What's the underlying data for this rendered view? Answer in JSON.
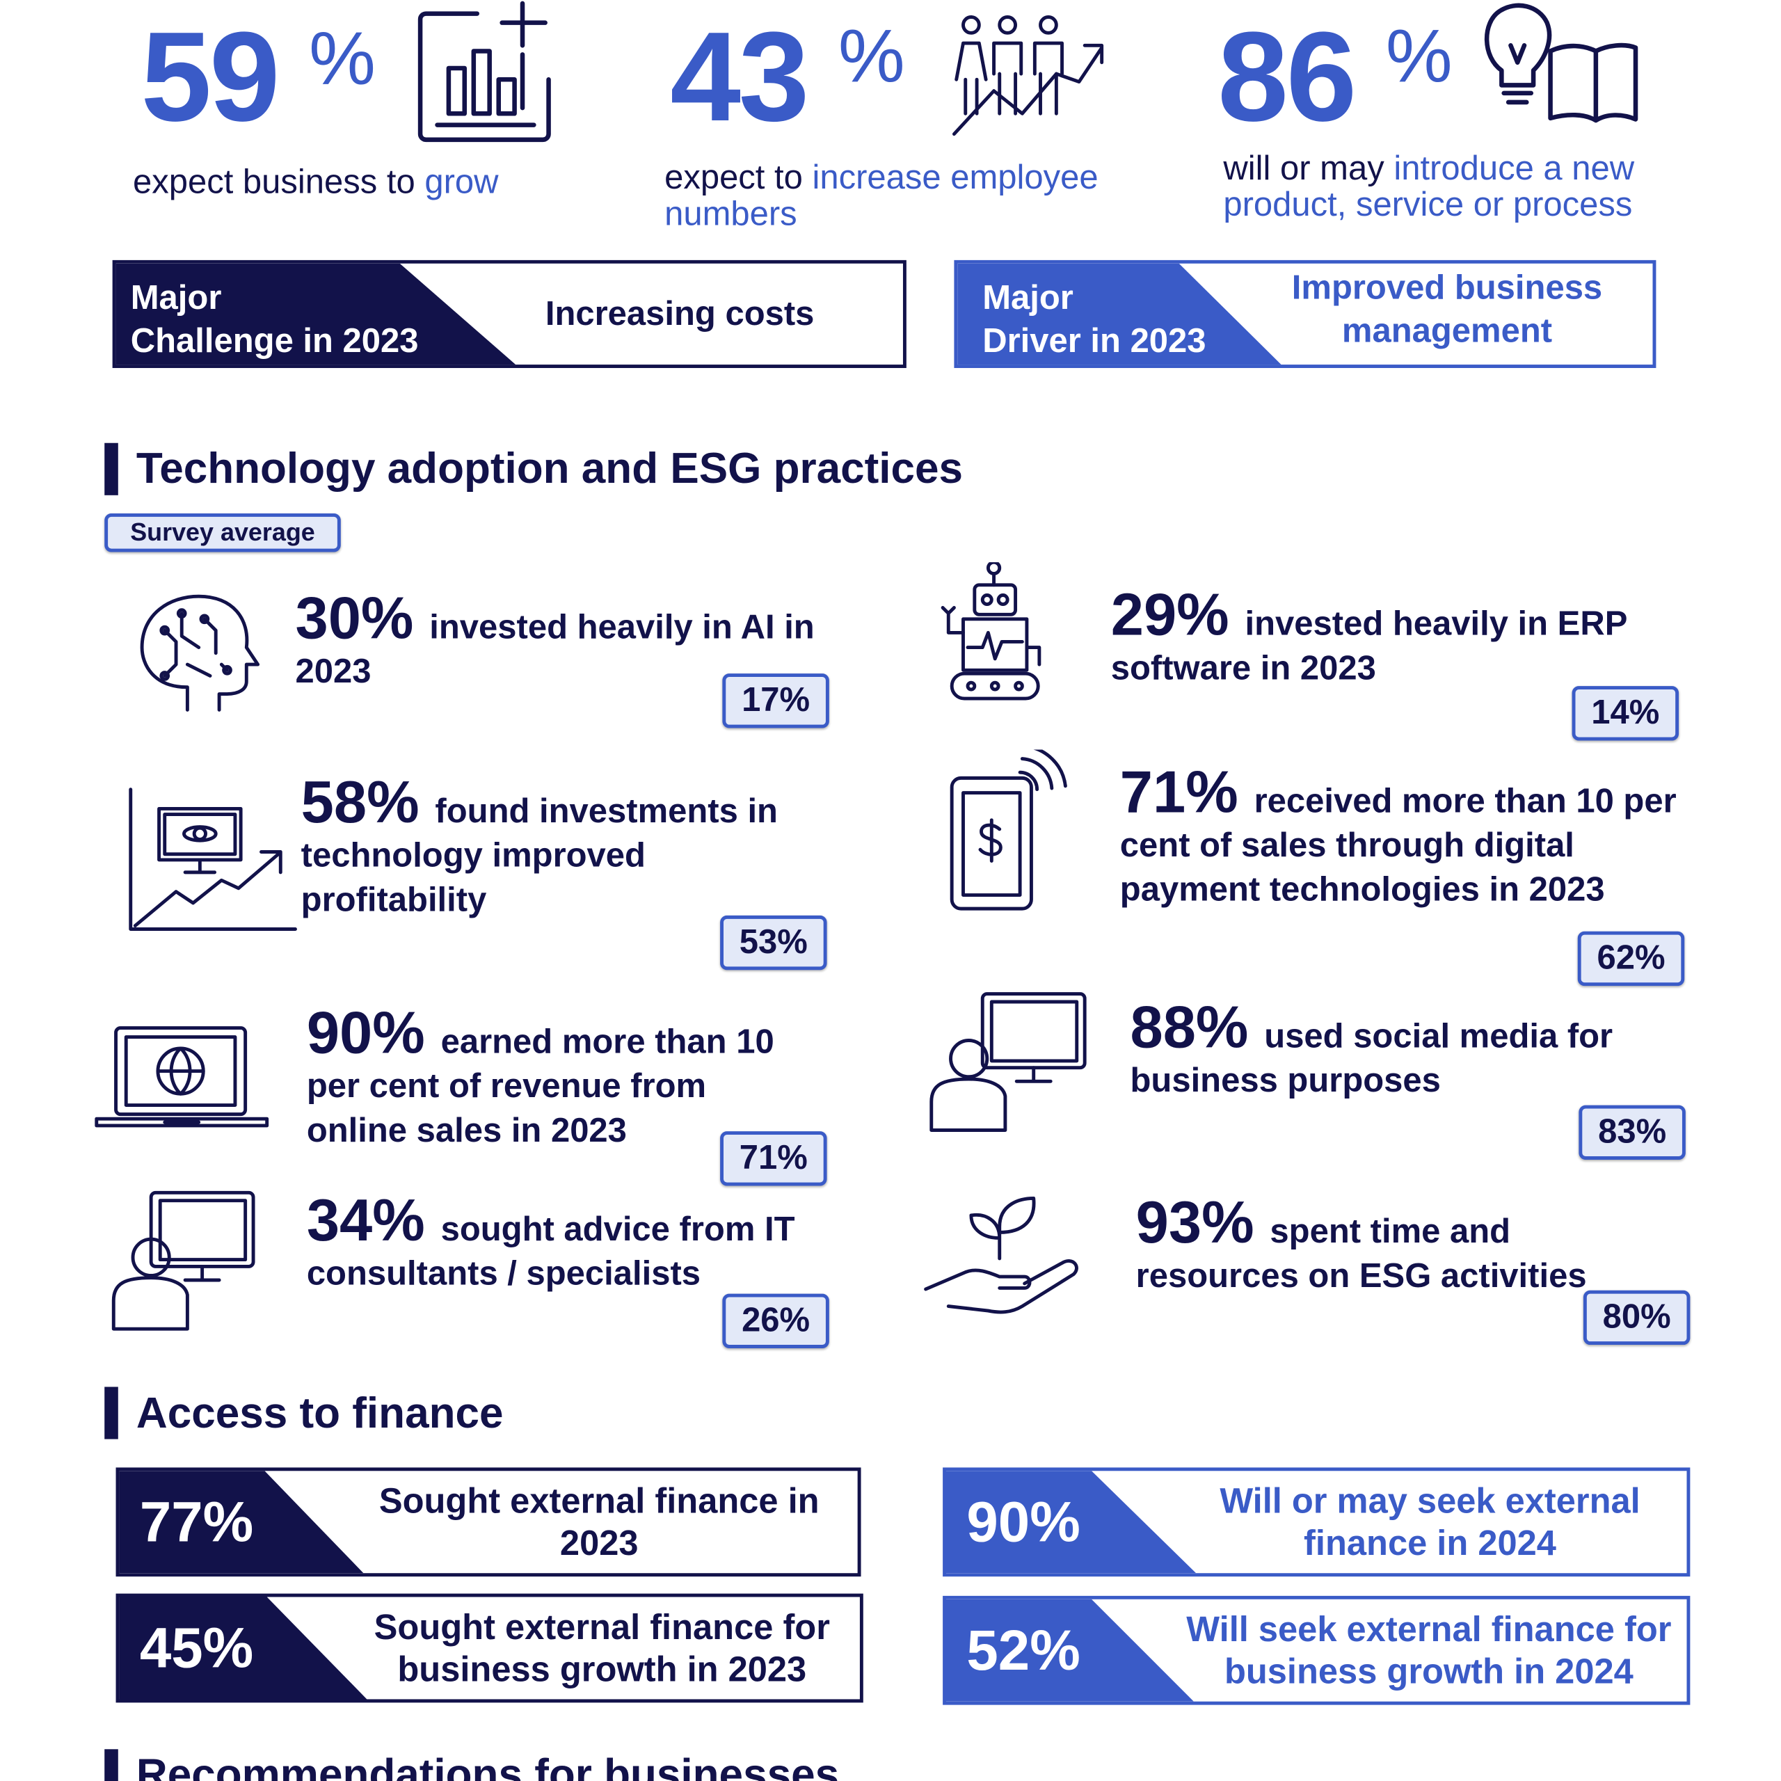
{
  "highlights": [
    {
      "number": "59",
      "unit": "%",
      "text": "expect business to",
      "emphasis": "grow"
    },
    {
      "number": "43",
      "unit": "%",
      "text": "expect to",
      "emphasis": "increase employee numbers"
    },
    {
      "number": "86",
      "unit": "%",
      "text": "will or may",
      "emphasis": "introduce a new product, service or process"
    }
  ],
  "major": [
    {
      "label": [
        "Major",
        "Challenge in 2023"
      ],
      "value": "Increasing costs"
    },
    {
      "label": [
        "Major",
        "Driver in 2023"
      ],
      "value": "Improved business management"
    }
  ],
  "technology": {
    "title": "Technology adoption and ESG practices",
    "legend": "Survey average",
    "items": [
      {
        "percent": "30%",
        "text": "invested heavily in AI in 2023",
        "average": "17%"
      },
      {
        "percent": "29%",
        "text": "invested heavily in ERP software in 2023",
        "average": "14%"
      },
      {
        "percent": "58%",
        "text": "found investments in technology improved profitability",
        "average": "53%"
      },
      {
        "percent": "71%",
        "text": "received more than 10 per cent of sales through digital payment technologies in 2023",
        "average": "62%"
      },
      {
        "percent": "90%",
        "text": "earned more than 10 per cent of revenue from online sales in 2023",
        "average": "71%"
      },
      {
        "percent": "88%",
        "text": "used social media for business purposes",
        "average": "83%"
      },
      {
        "percent": "34%",
        "text": "sought advice from IT consultants / specialists",
        "average": "26%"
      },
      {
        "percent": "93%",
        "text": "spent time and resources on ESG activities",
        "average": "80%"
      }
    ]
  },
  "finance": {
    "title": "Access to finance",
    "items": [
      {
        "percent": "77%",
        "text": "Sought external finance in 2023"
      },
      {
        "percent": "90%",
        "text": "Will or may seek external finance in 2024"
      },
      {
        "percent": "45%",
        "text": "Sought external finance for business growth in 2023"
      },
      {
        "percent": "52%",
        "text": "Will seek external finance for business growth in 2024"
      }
    ]
  },
  "next_section": {
    "title": "Recommendations for businesses"
  }
}
